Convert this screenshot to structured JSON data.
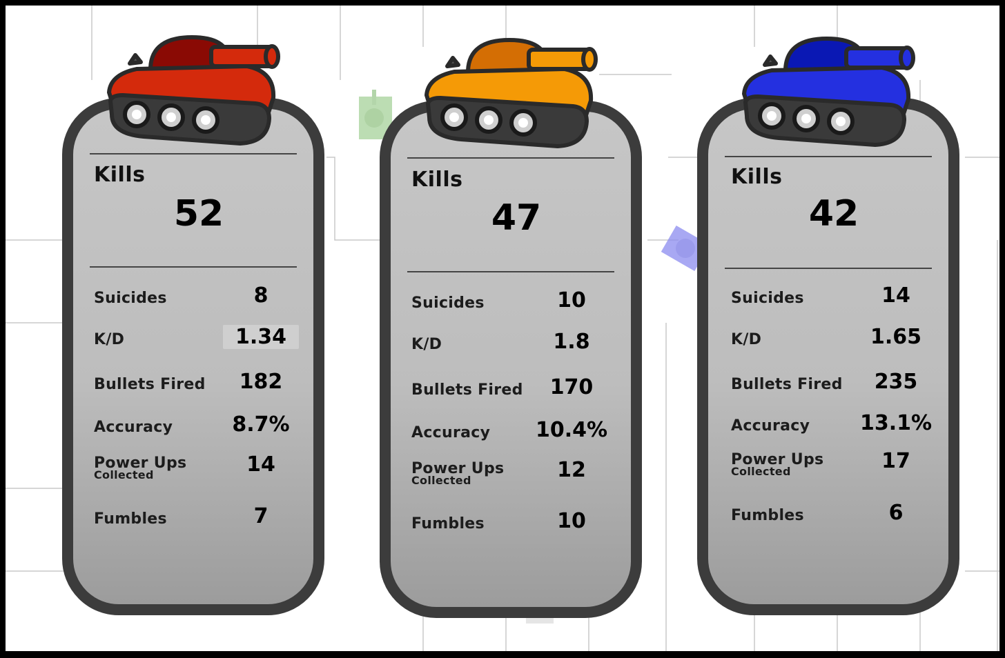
{
  "players": [
    {
      "tank_color": "#d42a0c",
      "tank_shade": "#8a0a04",
      "kills_label": "Kills",
      "kills": "52",
      "stats": [
        {
          "label": "Suicides",
          "value": "8"
        },
        {
          "label": "K/D",
          "value": "1.34"
        },
        {
          "label": "Bullets Fired",
          "value": "182"
        },
        {
          "label": "Accuracy",
          "value": "8.7%"
        },
        {
          "label": "Power Ups",
          "sublabel": "Collected",
          "value": "14"
        },
        {
          "label": "Fumbles",
          "value": "7"
        }
      ]
    },
    {
      "tank_color": "#f59a06",
      "tank_shade": "#d46e04",
      "kills_label": "Kills",
      "kills": "47",
      "stats": [
        {
          "label": "Suicides",
          "value": "10"
        },
        {
          "label": "K/D",
          "value": "1.8"
        },
        {
          "label": "Bullets Fired",
          "value": "170"
        },
        {
          "label": "Accuracy",
          "value": "10.4%"
        },
        {
          "label": "Power Ups",
          "sublabel": "Collected",
          "value": "12"
        },
        {
          "label": "Fumbles",
          "value": "10"
        }
      ]
    },
    {
      "tank_color": "#2430e0",
      "tank_shade": "#0a18b4",
      "kills_label": "Kills",
      "kills": "42",
      "stats": [
        {
          "label": "Suicides",
          "value": "14"
        },
        {
          "label": "K/D",
          "value": "1.65"
        },
        {
          "label": "Bullets Fired",
          "value": "235"
        },
        {
          "label": "Accuracy",
          "value": "13.1%"
        },
        {
          "label": "Power Ups",
          "sublabel": "Collected",
          "value": "17"
        },
        {
          "label": "Fumbles",
          "value": "6"
        }
      ]
    }
  ],
  "colors": {
    "card_border": "#3c3c3c",
    "maze_lines": "#c8c8c8",
    "ghost_tank_green": "#a6d29a",
    "ghost_tank_blue": "#8c8cf0"
  }
}
